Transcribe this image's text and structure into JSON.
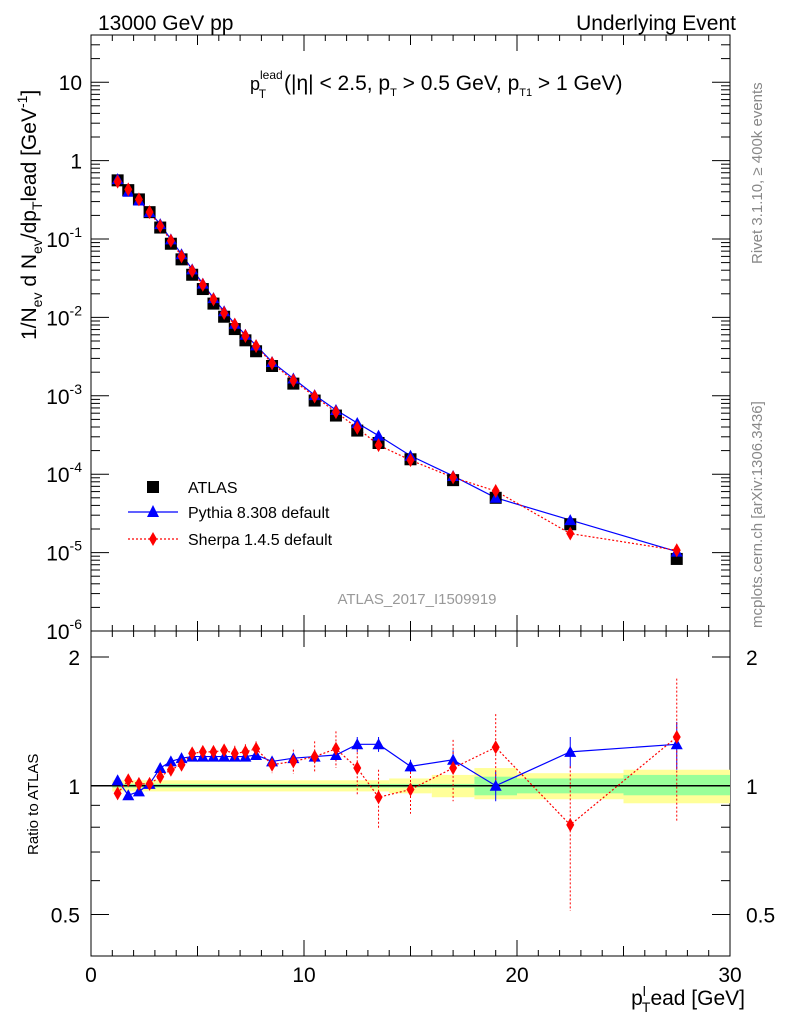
{
  "header": {
    "left": "13000 GeV pp",
    "right": "Underlying Event"
  },
  "side": {
    "rivet": "Rivet 3.1.10, ≥ 400k events",
    "mcplots": "mcplots.cern.ch [arXiv:1306.3436]"
  },
  "annotation": {
    "title_main": "p",
    "title_sup": "lead",
    "title_sub": "T",
    "title_rest": "(|η| < 2.5, p",
    "title_rest_sub": "T",
    "title_rest2": " > 0.5 GeV, p",
    "title_rest2_sub": "T1",
    "title_rest3": " > 1 GeV)",
    "analysis_id": "ATLAS_2017_I1509919"
  },
  "axes": {
    "top_ylabel": "1/N_ev d N_ev/dp_T^lead [GeV^-1]",
    "top_ylabel_parts": {
      "a": "1/N",
      "b": "ev",
      "c": " d N",
      "d": "ev",
      "e": "/dp",
      "f": "T",
      "g": "lead [GeV",
      "h": "-1",
      "i": "]"
    },
    "ratio_ylabel": "Ratio to ATLAS",
    "xlabel_main": "p",
    "xlabel_sub": "T",
    "xlabel_sup": "l",
    "xlabel_rest": "ead [GeV]",
    "top_yticks": [
      {
        "label": "10",
        "sup": "-6"
      },
      {
        "label": "10",
        "sup": "-5"
      },
      {
        "label": "10",
        "sup": "-4"
      },
      {
        "label": "10",
        "sup": "-3"
      },
      {
        "label": "10",
        "sup": "-2"
      },
      {
        "label": "10",
        "sup": "-1"
      },
      {
        "label": "1",
        "sup": ""
      },
      {
        "label": "10",
        "sup": ""
      }
    ],
    "ratio_yticks": [
      "0.5",
      "1",
      "2"
    ],
    "xticks": [
      "0",
      "10",
      "20",
      "30"
    ]
  },
  "legend": {
    "atlas": "ATLAS",
    "pythia": "Pythia 8.308 default",
    "sherpa": "Sherpa 1.4.5 default"
  },
  "colors": {
    "atlas": "#000000",
    "pythia": "#0000ff",
    "sherpa": "#ff0000",
    "band_stat": "#99ff99",
    "band_syst": "#ffff99"
  },
  "chart_data": {
    "type": "scatter",
    "xlim": [
      0,
      30
    ],
    "top_ylim": [
      1e-06,
      40
    ],
    "top_yscale": "log",
    "ratio_ylim": [
      0.4,
      2.3
    ],
    "ratio_yscale": "log",
    "x": [
      1.25,
      1.75,
      2.25,
      2.75,
      3.25,
      3.75,
      4.25,
      4.75,
      5.25,
      5.75,
      6.25,
      6.75,
      7.25,
      7.75,
      8.5,
      9.5,
      10.5,
      11.5,
      12.5,
      13.5,
      15.0,
      17.0,
      19.0,
      22.5,
      27.5
    ],
    "x_bins": [
      [
        1.0,
        1.5
      ],
      [
        1.5,
        2.0
      ],
      [
        2.0,
        2.5
      ],
      [
        2.5,
        3.0
      ],
      [
        3.0,
        3.5
      ],
      [
        3.5,
        4.0
      ],
      [
        4.0,
        4.5
      ],
      [
        4.5,
        5.0
      ],
      [
        5.0,
        5.5
      ],
      [
        5.5,
        6.0
      ],
      [
        6.0,
        6.5
      ],
      [
        6.5,
        7.0
      ],
      [
        7.0,
        7.5
      ],
      [
        7.5,
        8.0
      ],
      [
        8.0,
        9.0
      ],
      [
        9.0,
        10.0
      ],
      [
        10.0,
        11.0
      ],
      [
        11.0,
        12.0
      ],
      [
        12.0,
        13.0
      ],
      [
        13.0,
        14.0
      ],
      [
        14.0,
        16.0
      ],
      [
        16.0,
        18.0
      ],
      [
        18.0,
        20.0
      ],
      [
        20.0,
        25.0
      ],
      [
        25.0,
        30.0
      ]
    ],
    "series": [
      {
        "name": "ATLAS",
        "values": [
          0.56,
          0.42,
          0.32,
          0.22,
          0.14,
          0.087,
          0.055,
          0.035,
          0.023,
          0.015,
          0.0102,
          0.0071,
          0.0051,
          0.0037,
          0.0024,
          0.00143,
          0.00087,
          0.00056,
          0.00036,
          0.00025,
          0.000155,
          8.4e-05,
          5e-05,
          2.3e-05,
          8.3e-06
        ]
      },
      {
        "name": "Pythia 8.308 default",
        "values": [
          0.58,
          0.4,
          0.31,
          0.22,
          0.155,
          0.099,
          0.064,
          0.041,
          0.027,
          0.0176,
          0.012,
          0.0083,
          0.006,
          0.0044,
          0.0027,
          0.00166,
          0.00102,
          0.00066,
          0.00045,
          0.00031,
          0.000172,
          9.5e-05,
          5e-05,
          2.6e-05,
          1.03e-05
        ]
      },
      {
        "name": "Sherpa 1.4.5 default",
        "values": [
          0.54,
          0.43,
          0.32,
          0.22,
          0.146,
          0.095,
          0.06,
          0.039,
          0.026,
          0.017,
          0.0114,
          0.0081,
          0.0058,
          0.0043,
          0.0026,
          0.00157,
          0.00098,
          0.00062,
          0.00039,
          0.000235,
          0.000151,
          9.1e-05,
          6.1e-05,
          1.75e-05,
          1.07e-05
        ]
      }
    ],
    "ratio": {
      "pythia": [
        1.03,
        0.95,
        0.97,
        1.01,
        1.1,
        1.14,
        1.16,
        1.17,
        1.17,
        1.17,
        1.17,
        1.17,
        1.17,
        1.18,
        1.14,
        1.16,
        1.17,
        1.18,
        1.25,
        1.25,
        1.11,
        1.15,
        1.0,
        1.2,
        1.25
      ],
      "pythia_err": [
        0.01,
        0.01,
        0.01,
        0.01,
        0.01,
        0.01,
        0.01,
        0.01,
        0.01,
        0.01,
        0.01,
        0.02,
        0.02,
        0.02,
        0.02,
        0.03,
        0.04,
        0.04,
        0.05,
        0.05,
        0.04,
        0.06,
        0.08,
        0.1,
        0.16
      ],
      "sherpa": [
        0.96,
        1.03,
        1.01,
        1.01,
        1.05,
        1.09,
        1.12,
        1.19,
        1.2,
        1.2,
        1.21,
        1.19,
        1.2,
        1.22,
        1.12,
        1.14,
        1.17,
        1.22,
        1.1,
        0.94,
        0.98,
        1.1,
        1.23,
        0.81,
        1.3
      ]
    },
    "ratio_bands": {
      "stat": [
        [
          1.0,
          18.0,
          0.99,
          1.01
        ],
        [
          18.0,
          20.0,
          0.95,
          1.05
        ],
        [
          20.0,
          25.0,
          0.96,
          1.04
        ],
        [
          25.0,
          30.0,
          0.95,
          1.06
        ]
      ],
      "syst": [
        [
          1.0,
          14.0,
          0.97,
          1.03
        ],
        [
          14.0,
          16.0,
          0.96,
          1.04
        ],
        [
          16.0,
          18.0,
          0.94,
          1.06
        ],
        [
          18.0,
          20.0,
          0.93,
          1.1
        ],
        [
          20.0,
          25.0,
          0.93,
          1.07
        ],
        [
          25.0,
          30.0,
          0.91,
          1.09
        ]
      ]
    }
  }
}
